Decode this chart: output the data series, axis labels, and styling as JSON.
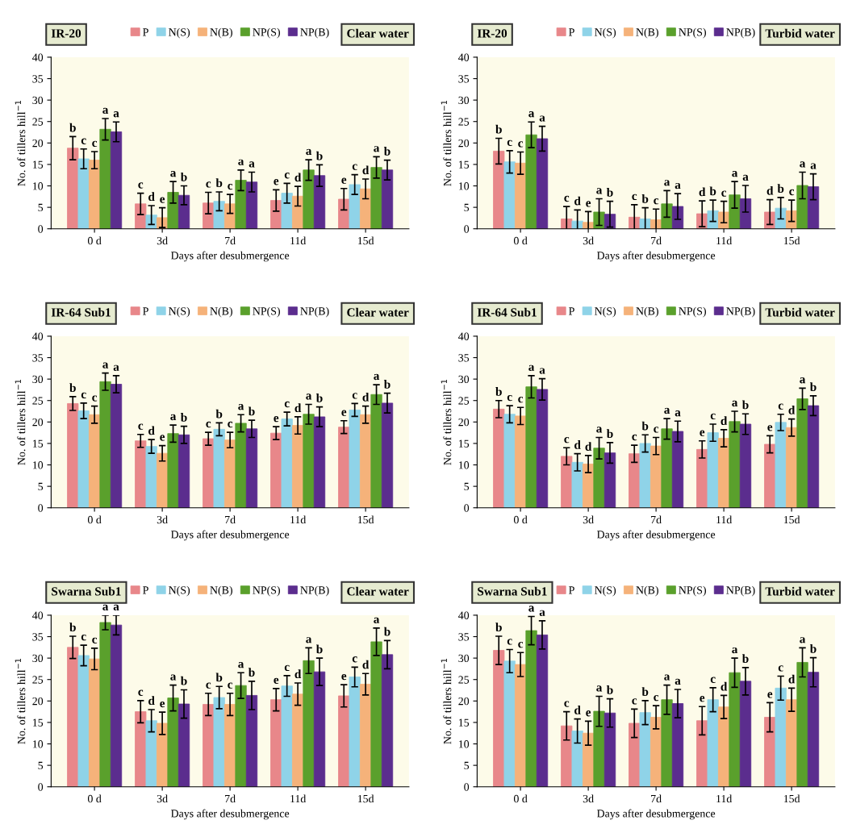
{
  "chart_data": [
    {
      "type": "bar",
      "title": "IR-20",
      "subtitle": "Clear water",
      "xlabel": "Days after desubmergence",
      "ylabel": "No. of tillers hill$^{−1}$",
      "categories": [
        "0 d",
        "3d",
        "7d",
        "11d",
        "15d"
      ],
      "ylim": [
        0,
        40
      ],
      "yticks": [
        0,
        5,
        10,
        15,
        20,
        25,
        30,
        35,
        40
      ],
      "legend": "top",
      "series": [
        {
          "name": "P",
          "color": "#e8878a",
          "values": [
            18.8,
            5.8,
            6.0,
            6.6,
            6.9
          ],
          "errors": [
            2.7,
            2.5,
            2.5,
            2.5,
            2.5
          ],
          "value_labels": [
            "b",
            "c",
            "c",
            "e",
            "e"
          ]
        },
        {
          "name": "N(S)",
          "color": "#8fd3e8",
          "values": [
            16.3,
            3.2,
            6.4,
            8.3,
            10.3
          ],
          "errors": [
            2.3,
            2.2,
            2.2,
            2.3,
            2.3
          ],
          "value_labels": [
            "c",
            "d",
            "b",
            "c",
            "c"
          ]
        },
        {
          "name": "N(B)",
          "color": "#f5b27a",
          "values": [
            16.0,
            2.6,
            5.8,
            7.6,
            9.3
          ],
          "errors": [
            2.0,
            2.3,
            2.2,
            2.3,
            2.3
          ],
          "value_labels": [
            "c",
            "e",
            "c",
            "d",
            "d"
          ]
        },
        {
          "name": "NP(S)",
          "color": "#5aa02c",
          "values": [
            23.2,
            8.5,
            11.3,
            13.7,
            14.3
          ],
          "errors": [
            2.5,
            2.5,
            2.4,
            2.4,
            2.5
          ],
          "value_labels": [
            "a",
            "a",
            "a",
            "a",
            "a"
          ]
        },
        {
          "name": "NP(B)",
          "color": "#5b2d8e",
          "values": [
            22.6,
            7.8,
            10.9,
            12.4,
            13.7
          ],
          "errors": [
            2.3,
            2.2,
            2.3,
            2.5,
            2.3
          ],
          "value_labels": [
            "a",
            "b",
            "a",
            "b",
            "b"
          ]
        }
      ]
    },
    {
      "type": "bar",
      "title": "IR-20",
      "subtitle": "Turbid water",
      "xlabel": "Days after desubmergence",
      "ylabel": "No. of tillers hill$^{−1}$",
      "categories": [
        "0 d",
        "3d",
        "7d",
        "11d",
        "15d"
      ],
      "ylim": [
        0,
        40
      ],
      "yticks": [
        0,
        5,
        10,
        15,
        20,
        25,
        30,
        35,
        40
      ],
      "legend": "top",
      "series": [
        {
          "name": "P",
          "color": "#e8878a",
          "values": [
            18.1,
            2.3,
            2.7,
            3.5,
            3.9
          ],
          "errors": [
            3.0,
            2.9,
            2.9,
            3.0,
            2.9
          ],
          "value_labels": [
            "b",
            "c",
            "c",
            "d",
            "d"
          ]
        },
        {
          "name": "N(S)",
          "color": "#8fd3e8",
          "values": [
            15.6,
            1.8,
            2.3,
            4.2,
            4.8
          ],
          "errors": [
            2.6,
            2.6,
            2.6,
            2.5,
            2.5
          ],
          "value_labels": [
            "c",
            "d",
            "b",
            "b",
            "b"
          ]
        },
        {
          "name": "N(B)",
          "color": "#f5b27a",
          "values": [
            15.3,
            1.5,
            2.1,
            3.9,
            4.2
          ],
          "errors": [
            2.6,
            2.5,
            2.5,
            2.5,
            2.5
          ],
          "value_labels": [
            "c",
            "e",
            "c",
            "c",
            "c"
          ]
        },
        {
          "name": "NP(S)",
          "color": "#5aa02c",
          "values": [
            21.9,
            3.9,
            5.8,
            7.9,
            10.1
          ],
          "errors": [
            3.0,
            3.1,
            3.1,
            3.1,
            3.1
          ],
          "value_labels": [
            "a",
            "a",
            "a",
            "a",
            "a"
          ]
        },
        {
          "name": "NP(B)",
          "color": "#5b2d8e",
          "values": [
            21.0,
            3.4,
            5.2,
            7.0,
            9.8
          ],
          "errors": [
            2.9,
            3.0,
            3.0,
            3.1,
            3.0
          ],
          "value_labels": [
            "a",
            "b",
            "a",
            "a",
            "a"
          ]
        }
      ]
    },
    {
      "type": "bar",
      "title": "IR-64 Sub1",
      "subtitle": "Clear water",
      "xlabel": "Days after desubmergence",
      "ylabel": "No. of tillers hill$^{−1}$",
      "categories": [
        "0 d",
        "3d",
        "7d",
        "11d",
        "15d"
      ],
      "ylim": [
        0,
        40
      ],
      "yticks": [
        0,
        5,
        10,
        15,
        20,
        25,
        30,
        35,
        40
      ],
      "legend": "top",
      "series": [
        {
          "name": "P",
          "color": "#e8878a",
          "values": [
            24.3,
            15.6,
            16.1,
            17.4,
            18.8
          ],
          "errors": [
            1.6,
            1.5,
            1.5,
            1.5,
            1.5
          ],
          "value_labels": [
            "b",
            "c",
            "c",
            "e",
            "e"
          ]
        },
        {
          "name": "N(S)",
          "color": "#8fd3e8",
          "values": [
            22.6,
            14.3,
            18.3,
            20.7,
            22.8
          ],
          "errors": [
            1.8,
            1.6,
            1.5,
            1.6,
            1.5
          ],
          "value_labels": [
            "c",
            "d",
            "b",
            "c",
            "c"
          ]
        },
        {
          "name": "N(B)",
          "color": "#f5b27a",
          "values": [
            21.7,
            12.7,
            15.8,
            19.2,
            21.7
          ],
          "errors": [
            2.0,
            1.8,
            1.8,
            2.0,
            2.0
          ],
          "value_labels": [
            "c",
            "e",
            "c",
            "d",
            "d"
          ]
        },
        {
          "name": "NP(S)",
          "color": "#5aa02c",
          "values": [
            29.4,
            17.3,
            19.7,
            21.8,
            26.4
          ],
          "errors": [
            2.0,
            2.0,
            2.0,
            2.3,
            2.3
          ],
          "value_labels": [
            "a",
            "a",
            "a",
            "a",
            "a"
          ]
        },
        {
          "name": "NP(B)",
          "color": "#5b2d8e",
          "values": [
            28.8,
            17.0,
            18.4,
            21.2,
            24.4
          ],
          "errors": [
            2.0,
            2.0,
            2.0,
            2.3,
            2.3
          ],
          "value_labels": [
            "a",
            "b",
            "b",
            "b",
            "b"
          ]
        }
      ]
    },
    {
      "type": "bar",
      "title": "IR-64 Sub1",
      "subtitle": "Turbid water",
      "xlabel": "Days after desubmergence",
      "ylabel": "No. of tillers hill$^{−1}$",
      "categories": [
        "0 d",
        "3d",
        "7d",
        "11d",
        "15d"
      ],
      "ylim": [
        0,
        40
      ],
      "yticks": [
        0,
        5,
        10,
        15,
        20,
        25,
        30,
        35,
        40
      ],
      "legend": "top",
      "series": [
        {
          "name": "P",
          "color": "#e8878a",
          "values": [
            23.0,
            12.0,
            12.6,
            13.6,
            14.8
          ],
          "errors": [
            2.0,
            2.0,
            2.0,
            2.0,
            2.0
          ],
          "value_labels": [
            "b",
            "c",
            "c",
            "e",
            "e"
          ]
        },
        {
          "name": "N(S)",
          "color": "#8fd3e8",
          "values": [
            21.8,
            10.6,
            15.0,
            17.5,
            19.9
          ],
          "errors": [
            2.0,
            2.0,
            2.0,
            2.0,
            1.9
          ],
          "value_labels": [
            "c",
            "d",
            "b",
            "c",
            "c"
          ]
        },
        {
          "name": "N(B)",
          "color": "#f5b27a",
          "values": [
            21.4,
            10.2,
            14.4,
            16.2,
            18.7
          ],
          "errors": [
            2.0,
            2.0,
            2.0,
            2.0,
            2.0
          ],
          "value_labels": [
            "c",
            "d",
            "c",
            "d",
            "d"
          ]
        },
        {
          "name": "NP(S)",
          "color": "#5aa02c",
          "values": [
            28.2,
            13.9,
            18.4,
            20.1,
            25.4
          ],
          "errors": [
            2.6,
            2.5,
            2.4,
            2.4,
            2.5
          ],
          "value_labels": [
            "a",
            "a",
            "a",
            "a",
            "a"
          ]
        },
        {
          "name": "NP(B)",
          "color": "#5b2d8e",
          "values": [
            27.6,
            12.8,
            17.8,
            19.5,
            23.8
          ],
          "errors": [
            2.5,
            2.4,
            2.4,
            2.4,
            2.3
          ],
          "value_labels": [
            "a",
            "b",
            "a",
            "b",
            "b"
          ]
        }
      ]
    },
    {
      "type": "bar",
      "title": "Swarna Sub1",
      "subtitle": "Clear water",
      "xlabel": "Days after desubmergence",
      "ylabel": "No. of tillers hill$^{−1}$",
      "categories": [
        "0 d",
        "3d",
        "7d",
        "11d",
        "15d"
      ],
      "ylim": [
        0,
        40
      ],
      "yticks": [
        0,
        5,
        10,
        15,
        20,
        25,
        30,
        35,
        40
      ],
      "legend": "top",
      "series": [
        {
          "name": "P",
          "color": "#e8878a",
          "values": [
            32.5,
            17.5,
            19.2,
            20.3,
            21.2
          ],
          "errors": [
            2.6,
            2.6,
            2.6,
            2.6,
            2.6
          ],
          "value_labels": [
            "b",
            "c",
            "c",
            "e",
            "e"
          ]
        },
        {
          "name": "N(S)",
          "color": "#8fd3e8",
          "values": [
            30.6,
            15.4,
            20.8,
            23.5,
            25.6
          ],
          "errors": [
            2.4,
            2.6,
            2.6,
            2.4,
            2.3
          ],
          "value_labels": [
            "c",
            "d",
            "b",
            "c",
            "c"
          ]
        },
        {
          "name": "N(B)",
          "color": "#f5b27a",
          "values": [
            29.8,
            14.8,
            19.2,
            21.6,
            23.9
          ],
          "errors": [
            2.5,
            2.6,
            2.6,
            2.6,
            2.5
          ],
          "value_labels": [
            "c",
            "e",
            "c",
            "d",
            "d"
          ]
        },
        {
          "name": "NP(S)",
          "color": "#5aa02c",
          "values": [
            38.3,
            20.7,
            23.6,
            29.4,
            33.8
          ],
          "errors": [
            1.7,
            3.0,
            3.0,
            3.0,
            3.2
          ],
          "value_labels": [
            "a",
            "a",
            "a",
            "a",
            "a"
          ]
        },
        {
          "name": "NP(B)",
          "color": "#5b2d8e",
          "values": [
            37.7,
            19.3,
            21.3,
            26.8,
            30.8
          ],
          "errors": [
            2.3,
            3.3,
            3.3,
            3.2,
            3.3
          ],
          "value_labels": [
            "a",
            "b",
            "b",
            "b",
            "b"
          ]
        }
      ]
    },
    {
      "type": "bar",
      "title": "Swarna Sub1",
      "subtitle": "Turbid water",
      "xlabel": "Days after desubmergence",
      "ylabel": "No. of tillers hill$^{−1}$",
      "categories": [
        "0 d",
        "3d",
        "7d",
        "11d",
        "15d"
      ],
      "ylim": [
        0,
        40
      ],
      "yticks": [
        0,
        5,
        10,
        15,
        20,
        25,
        30,
        35,
        40
      ],
      "legend": "top",
      "series": [
        {
          "name": "P",
          "color": "#e8878a",
          "values": [
            31.8,
            14.2,
            14.8,
            15.4,
            16.2
          ],
          "errors": [
            3.3,
            3.3,
            3.3,
            3.3,
            3.4
          ],
          "value_labels": [
            "b",
            "c",
            "c",
            "e",
            "e"
          ]
        },
        {
          "name": "N(S)",
          "color": "#8fd3e8",
          "values": [
            29.3,
            13.0,
            17.3,
            20.3,
            23.0
          ],
          "errors": [
            2.7,
            2.8,
            2.8,
            2.8,
            2.8
          ],
          "value_labels": [
            "c",
            "d",
            "b",
            "c",
            "c"
          ]
        },
        {
          "name": "N(B)",
          "color": "#f5b27a",
          "values": [
            28.5,
            12.5,
            16.2,
            18.6,
            20.3
          ],
          "errors": [
            2.8,
            2.8,
            2.7,
            2.7,
            2.7
          ],
          "value_labels": [
            "c",
            "e",
            "c",
            "d",
            "d"
          ]
        },
        {
          "name": "NP(S)",
          "color": "#5aa02c",
          "values": [
            36.4,
            17.6,
            20.3,
            26.6,
            29.0
          ],
          "errors": [
            3.3,
            3.5,
            3.4,
            3.4,
            3.4
          ],
          "value_labels": [
            "a",
            "a",
            "a",
            "a",
            "a"
          ]
        },
        {
          "name": "NP(B)",
          "color": "#5b2d8e",
          "values": [
            35.4,
            17.2,
            19.4,
            24.6,
            26.7
          ],
          "errors": [
            3.3,
            3.3,
            3.3,
            3.2,
            3.4
          ],
          "value_labels": [
            "a",
            "b",
            "a",
            "b",
            "b"
          ]
        }
      ]
    }
  ]
}
